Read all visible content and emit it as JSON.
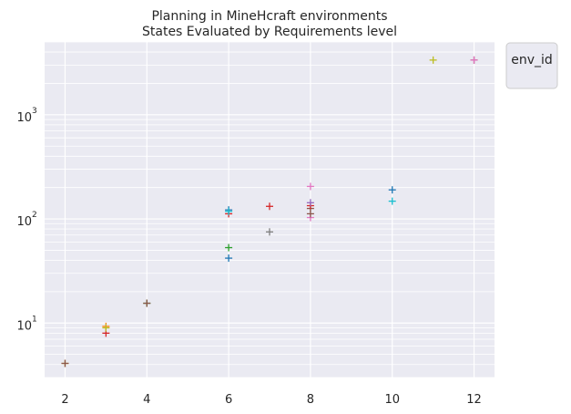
{
  "chart_data": {
    "type": "scatter",
    "title": "Planning in MineHcraft environments",
    "subtitle": "States Evaluated by Requirements level",
    "xlabel": "",
    "ylabel": "",
    "y_scale": "log",
    "xlim": [
      1.5,
      12.5
    ],
    "ylim": [
      3.0,
      5000
    ],
    "x_ticks": [
      2,
      4,
      6,
      8,
      10,
      12
    ],
    "x_tick_labels": [
      "2",
      "4",
      "6",
      "8",
      "10",
      "12"
    ],
    "y_ticks": [
      10,
      100,
      1000
    ],
    "y_tick_labels": [
      {
        "base": "10",
        "exp": "1"
      },
      {
        "base": "10",
        "exp": "2"
      },
      {
        "base": "10",
        "exp": "3"
      }
    ],
    "grid": true,
    "marker": "+",
    "legend": {
      "title": "env_id",
      "placement": "outside-top-right",
      "entries": []
    },
    "points": [
      {
        "x": 2,
        "y": 4.1,
        "color": "#bcbd22"
      },
      {
        "x": 2,
        "y": 4.1,
        "color": "#8c564b"
      },
      {
        "x": 3,
        "y": 8,
        "color": "#d62728"
      },
      {
        "x": 3,
        "y": 9.3,
        "color": "#ff7f0e"
      },
      {
        "x": 3,
        "y": 9,
        "color": "#bcbd22"
      },
      {
        "x": 4,
        "y": 15.5,
        "color": "#2ca02c"
      },
      {
        "x": 4,
        "y": 15.5,
        "color": "#8c564b"
      },
      {
        "x": 6,
        "y": 42,
        "color": "#1f77b4"
      },
      {
        "x": 6,
        "y": 53,
        "color": "#2ca02c"
      },
      {
        "x": 6,
        "y": 112,
        "color": "#d62728"
      },
      {
        "x": 6,
        "y": 122,
        "color": "#1f77b4"
      },
      {
        "x": 6,
        "y": 118,
        "color": "#17becf"
      },
      {
        "x": 7,
        "y": 75,
        "color": "#7f7f7f"
      },
      {
        "x": 7,
        "y": 132,
        "color": "#d62728"
      },
      {
        "x": 8,
        "y": 103,
        "color": "#e377c2"
      },
      {
        "x": 8,
        "y": 112,
        "color": "#8c564b"
      },
      {
        "x": 8,
        "y": 126,
        "color": "#8c564b"
      },
      {
        "x": 8,
        "y": 134,
        "color": "#d62728"
      },
      {
        "x": 8,
        "y": 143,
        "color": "#9467bd"
      },
      {
        "x": 8,
        "y": 205,
        "color": "#e377c2"
      },
      {
        "x": 10,
        "y": 148,
        "color": "#17becf"
      },
      {
        "x": 10,
        "y": 190,
        "color": "#1f77b4"
      },
      {
        "x": 11,
        "y": 3350,
        "color": "#bcbd22"
      },
      {
        "x": 12,
        "y": 3350,
        "color": "#8c564b"
      },
      {
        "x": 12,
        "y": 3350,
        "color": "#e377c2"
      }
    ]
  },
  "colors": {
    "plot_background": "#eaeaf2",
    "grid": "#ffffff",
    "text": "#262626"
  }
}
